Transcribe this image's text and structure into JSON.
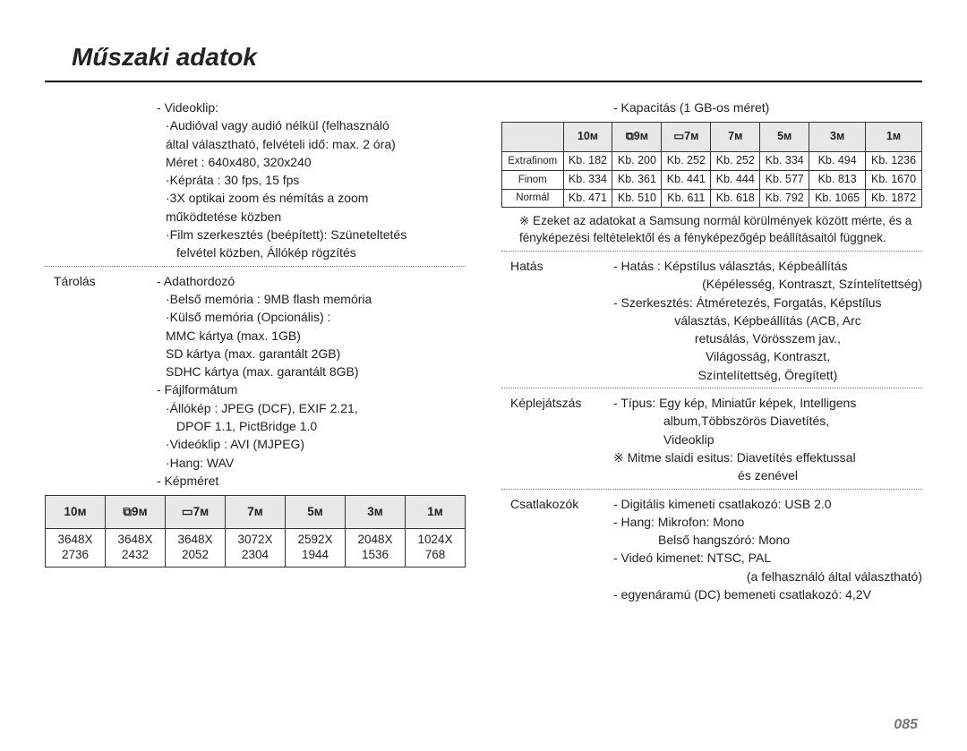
{
  "title": "Műszaki adatok",
  "page_number": "085",
  "left": {
    "video": {
      "heading": "- Videoklip:",
      "l1": "·Audióval vagy audió nélkül (felhasználó",
      "l2": "által választható, felvételi idő: max. 2 óra)",
      "l3": "Méret : 640x480, 320x240",
      "l4": "·Képráta : 30 fps, 15 fps",
      "l5": "·3X optikai zoom és némítás a zoom",
      "l6": "működtetése közben",
      "l7": "·Film szerkesztés (beépített): Szüneteltetés",
      "l8": "felvétel közben, Állókép rögzítés"
    },
    "storage": {
      "label": "Tárolás",
      "l1": "- Adathordozó",
      "l2": "·Belső memória : 9MB flash memória",
      "l3": "·Külső memória (Opcionális) :",
      "l4": "MMC kártya (max. 1GB)",
      "l5": "SD kártya (max. garantált 2GB)",
      "l6": "SDHC kártya (max. garantált 8GB)",
      "l7": "- Fájlformátum",
      "l8": "·Állókép : JPEG (DCF), EXIF 2.21,",
      "l9": "DPOF 1.1, PictBridge 1.0",
      "l10": "·Videóklip : AVI (MJPEG)",
      "l11": "·Hang: WAV",
      "l12": "- Képméret"
    },
    "size_table": {
      "headers": [
        "10ᴍ",
        "⧉9ᴍ",
        "▭7ᴍ",
        "7ᴍ",
        "5ᴍ",
        "3ᴍ",
        "1ᴍ"
      ],
      "row": [
        "3648X\n2736",
        "3648X\n2432",
        "3648X\n2052",
        "3072X\n2304",
        "2592X\n1944",
        "2048X\n1536",
        "1024X\n768"
      ]
    }
  },
  "right": {
    "cap_heading": "- Kapacitás (1 GB-os méret)",
    "cap_table": {
      "headers": [
        "",
        "10ᴍ",
        "⧉9ᴍ",
        "▭7ᴍ",
        "7ᴍ",
        "5ᴍ",
        "3ᴍ",
        "1ᴍ"
      ],
      "rows": [
        [
          "Extrafinom",
          "Kb. 182",
          "Kb. 200",
          "Kb. 252",
          "Kb. 252",
          "Kb. 334",
          "Kb. 494",
          "Kb. 1236"
        ],
        [
          "Finom",
          "Kb. 334",
          "Kb. 361",
          "Kb. 441",
          "Kb. 444",
          "Kb. 577",
          "Kb. 813",
          "Kb. 1670"
        ],
        [
          "Normál",
          "Kb. 471",
          "Kb. 510",
          "Kb. 611",
          "Kb. 618",
          "Kb. 792",
          "Kb. 1065",
          "Kb. 1872"
        ]
      ]
    },
    "note1": "※ Ezeket az adatokat a Samsung normál körülmények között mérte, és a fényképezési feltételektől és a fényképezőgép beállításaitól függnek.",
    "effect": {
      "label": "Hatás",
      "l1": "- Hatás : Képstílus választás, Képbeállítás",
      "l2": "(Képélesség, Kontraszt, Színtelítettség)",
      "l3": "- Szerkesztés: Átméretezés, Forgatás, Képstílus",
      "l4": "választás, Képbeállítás (ACB, Arc",
      "l5": "retusálás, Vörösszem jav.,",
      "l6": "Világosság, Kontraszt,",
      "l7": "Színtelítettség, Öregített)"
    },
    "playback": {
      "label": "Képlejátszás",
      "l1": "- Típus: Egy kép, Miniatűr képek, Intelligens",
      "l2": "album,Többszörös Diavetítés,",
      "l3": "Videoklip",
      "l4": "※ Mitme slaidi esitus: Diavetítés effektussal",
      "l5": "és zenével"
    },
    "connectors": {
      "label": "Csatlakozók",
      "l1": "- Digitális kimeneti csatlakozó: USB 2.0",
      "l2": "- Hang: Mikrofon: Mono",
      "l3": "Belső hangszóró: Mono",
      "l4": "- Videó kimenet: NTSC, PAL",
      "l5": "(a felhasználó által választható)",
      "l6": "- egyenáramú (DC) bemeneti csatlakozó: 4,2V"
    }
  }
}
